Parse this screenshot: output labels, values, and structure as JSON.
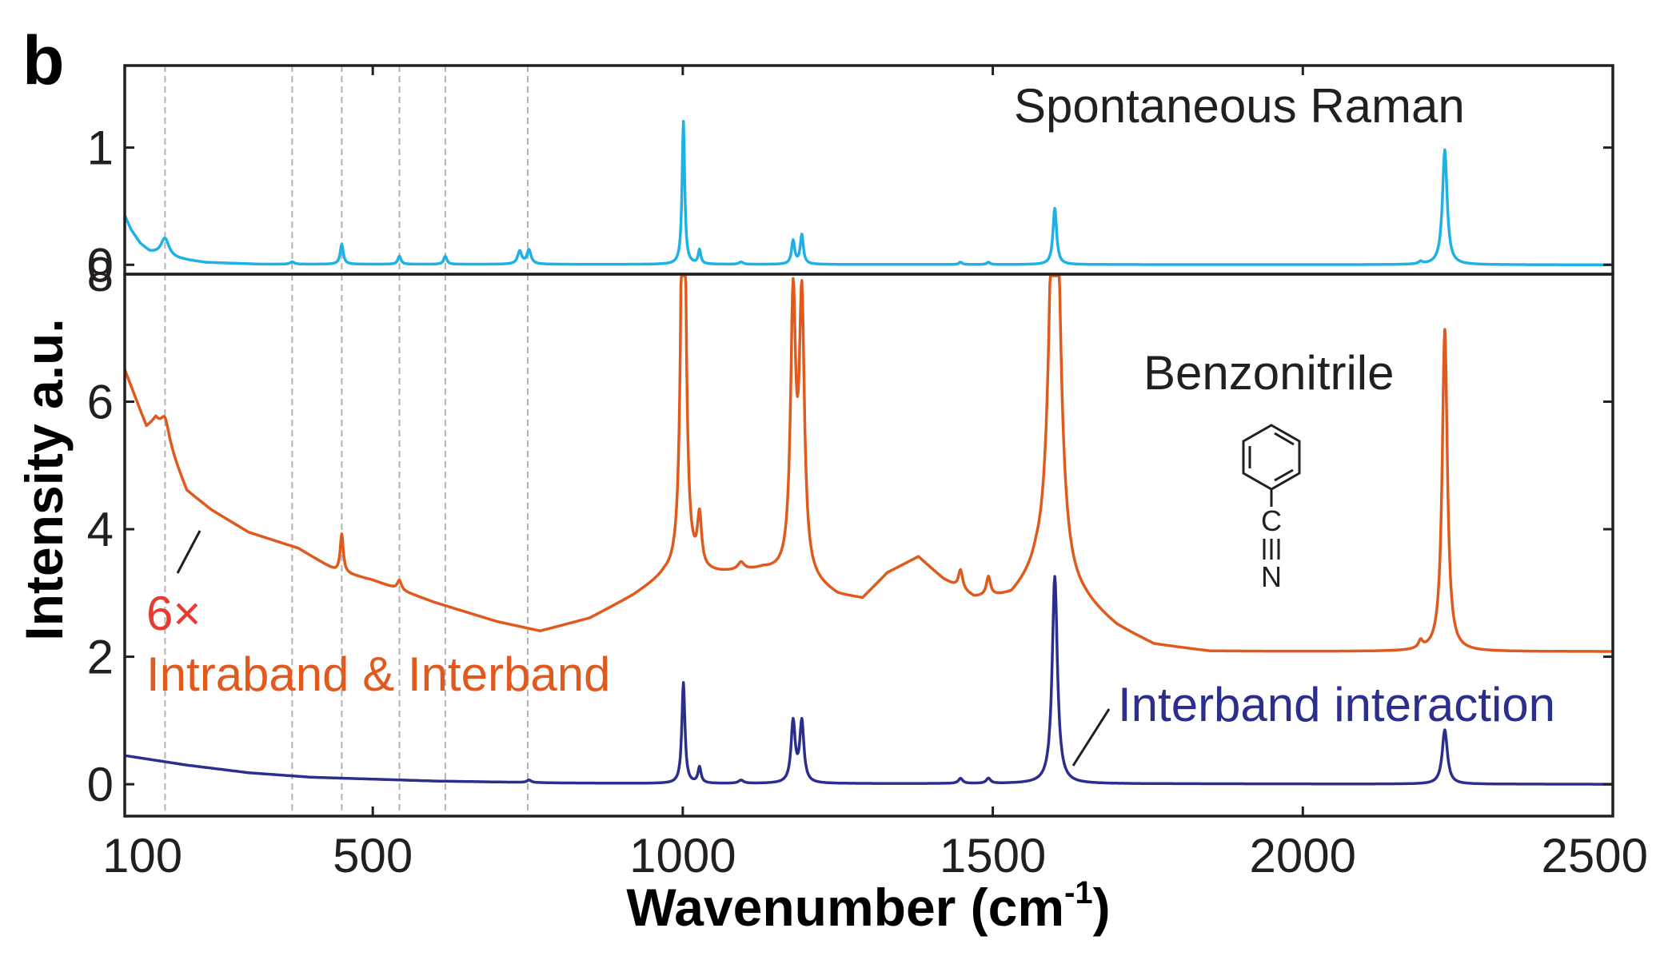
{
  "chart_data": [
    {
      "type": "line",
      "panel": "top",
      "panel_letter": "b",
      "xlim": [
        100,
        2500
      ],
      "ylim": [
        -0.08,
        1.7
      ],
      "yticks": [
        0,
        1
      ],
      "x_ticks_shown": false,
      "grid": false,
      "annotations": [
        {
          "text": "Spontaneous Raman",
          "color": "#231f20"
        }
      ],
      "vlines_wavenumber": [
        165,
        370,
        450,
        543,
        617,
        750
      ],
      "series": [
        {
          "color": "#1fb1e6",
          "baseline": 0.0,
          "background": [
            {
              "x": 100,
              "y": 0.42
            },
            {
              "x": 110,
              "y": 0.3
            },
            {
              "x": 125,
              "y": 0.18
            },
            {
              "x": 140,
              "y": 0.11
            },
            {
              "x": 170,
              "y": 0.06
            },
            {
              "x": 230,
              "y": 0.02
            },
            {
              "x": 320,
              "y": 0.005
            },
            {
              "x": 2500,
              "y": 0.0
            }
          ],
          "peaks": [
            {
              "x": 165,
              "h": 0.16,
              "w": 8
            },
            {
              "x": 370,
              "h": 0.02,
              "w": 4
            },
            {
              "x": 450,
              "h": 0.17,
              "w": 3
            },
            {
              "x": 543,
              "h": 0.07,
              "w": 3
            },
            {
              "x": 617,
              "h": 0.07,
              "w": 3
            },
            {
              "x": 737,
              "h": 0.11,
              "w": 4
            },
            {
              "x": 752,
              "h": 0.12,
              "w": 4
            },
            {
              "x": 1001,
              "h": 1.22,
              "w": 2.5
            },
            {
              "x": 1027,
              "h": 0.12,
              "w": 2.5
            },
            {
              "x": 1094,
              "h": 0.02,
              "w": 4
            },
            {
              "x": 1178,
              "h": 0.2,
              "w": 3
            },
            {
              "x": 1192,
              "h": 0.25,
              "w": 3
            },
            {
              "x": 1448,
              "h": 0.02,
              "w": 3
            },
            {
              "x": 1493,
              "h": 0.02,
              "w": 3
            },
            {
              "x": 1600,
              "h": 0.48,
              "w": 3.5
            },
            {
              "x": 2190,
              "h": 0.02,
              "w": 4
            },
            {
              "x": 2229,
              "h": 0.98,
              "w": 4.5
            }
          ]
        }
      ]
    },
    {
      "type": "line",
      "panel": "bottom",
      "xlim": [
        100,
        2500
      ],
      "ylim": [
        -0.5,
        8.0
      ],
      "xticks": [
        100,
        500,
        1000,
        1500,
        2000,
        2500
      ],
      "yticks": [
        0,
        2,
        4,
        6,
        8
      ],
      "xlabel": "Wavenumber (cm",
      "xlabel_superscript": "-1",
      "xlabel_close": ")",
      "ylabel": "Intensity a.u.",
      "grid": false,
      "annotations": [
        {
          "text": "Benzonitrile",
          "color": "#231f20"
        },
        {
          "text": "6×",
          "color": "#e63b2e"
        },
        {
          "text": "Intraband & Interband",
          "color": "#e05a1e"
        },
        {
          "text": "Interband interaction",
          "color": "#2b2e8c"
        }
      ],
      "molecule_atoms": [
        "C",
        "N"
      ],
      "series": [
        {
          "color": "#e05a1e",
          "background": [
            {
              "x": 100,
              "y": 6.5
            },
            {
              "x": 135,
              "y": 5.6
            },
            {
              "x": 150,
              "y": 5.7
            },
            {
              "x": 175,
              "y": 5.2
            },
            {
              "x": 200,
              "y": 4.6
            },
            {
              "x": 240,
              "y": 4.3
            },
            {
              "x": 300,
              "y": 3.95
            },
            {
              "x": 380,
              "y": 3.7
            },
            {
              "x": 440,
              "y": 3.35
            },
            {
              "x": 500,
              "y": 3.2
            },
            {
              "x": 600,
              "y": 2.85
            },
            {
              "x": 700,
              "y": 2.55
            },
            {
              "x": 770,
              "y": 2.4
            },
            {
              "x": 850,
              "y": 2.6
            },
            {
              "x": 920,
              "y": 2.95
            },
            {
              "x": 970,
              "y": 3.25
            },
            {
              "x": 1000,
              "y": 3.3
            },
            {
              "x": 1060,
              "y": 3.3
            },
            {
              "x": 1130,
              "y": 3.35
            },
            {
              "x": 1200,
              "y": 3.2
            },
            {
              "x": 1250,
              "y": 2.95
            },
            {
              "x": 1290,
              "y": 2.9
            },
            {
              "x": 1330,
              "y": 3.3
            },
            {
              "x": 1380,
              "y": 3.55
            },
            {
              "x": 1420,
              "y": 3.2
            },
            {
              "x": 1470,
              "y": 2.9
            },
            {
              "x": 1530,
              "y": 2.9
            },
            {
              "x": 1570,
              "y": 3.2
            },
            {
              "x": 1650,
              "y": 2.8
            },
            {
              "x": 1700,
              "y": 2.45
            },
            {
              "x": 1760,
              "y": 2.18
            },
            {
              "x": 1850,
              "y": 2.08
            },
            {
              "x": 2500,
              "y": 2.08
            }
          ],
          "peaks": [
            {
              "x": 165,
              "h": 0.35,
              "w": 8
            },
            {
              "x": 450,
              "h": 0.6,
              "w": 3
            },
            {
              "x": 543,
              "h": 0.15,
              "w": 4
            },
            {
              "x": 1001,
              "h": 9.0,
              "w": 4
            },
            {
              "x": 1027,
              "h": 0.8,
              "w": 4
            },
            {
              "x": 1094,
              "h": 0.12,
              "w": 6
            },
            {
              "x": 1178,
              "h": 4.2,
              "w": 5
            },
            {
              "x": 1192,
              "h": 4.2,
              "w": 5
            },
            {
              "x": 1448,
              "h": 0.3,
              "w": 4
            },
            {
              "x": 1493,
              "h": 0.3,
              "w": 4
            },
            {
              "x": 1600,
              "h": 8.5,
              "w": 9
            },
            {
              "x": 2190,
              "h": 0.12,
              "w": 4
            },
            {
              "x": 2229,
              "h": 5.05,
              "w": 5
            }
          ]
        },
        {
          "color": "#2b2e8c",
          "background": [
            {
              "x": 100,
              "y": 0.45
            },
            {
              "x": 200,
              "y": 0.3
            },
            {
              "x": 300,
              "y": 0.18
            },
            {
              "x": 400,
              "y": 0.11
            },
            {
              "x": 600,
              "y": 0.05
            },
            {
              "x": 800,
              "y": 0.02
            },
            {
              "x": 1000,
              "y": 0.01
            },
            {
              "x": 1500,
              "y": 0.01
            },
            {
              "x": 2500,
              "y": 0.0
            }
          ],
          "peaks": [
            {
              "x": 752,
              "h": 0.04,
              "w": 4
            },
            {
              "x": 1001,
              "h": 1.58,
              "w": 3
            },
            {
              "x": 1027,
              "h": 0.25,
              "w": 3
            },
            {
              "x": 1094,
              "h": 0.05,
              "w": 5
            },
            {
              "x": 1178,
              "h": 0.95,
              "w": 4
            },
            {
              "x": 1192,
              "h": 0.95,
              "w": 4
            },
            {
              "x": 1448,
              "h": 0.08,
              "w": 4
            },
            {
              "x": 1493,
              "h": 0.08,
              "w": 4
            },
            {
              "x": 1600,
              "h": 3.25,
              "w": 5
            },
            {
              "x": 2229,
              "h": 0.85,
              "w": 5
            }
          ]
        }
      ]
    }
  ]
}
